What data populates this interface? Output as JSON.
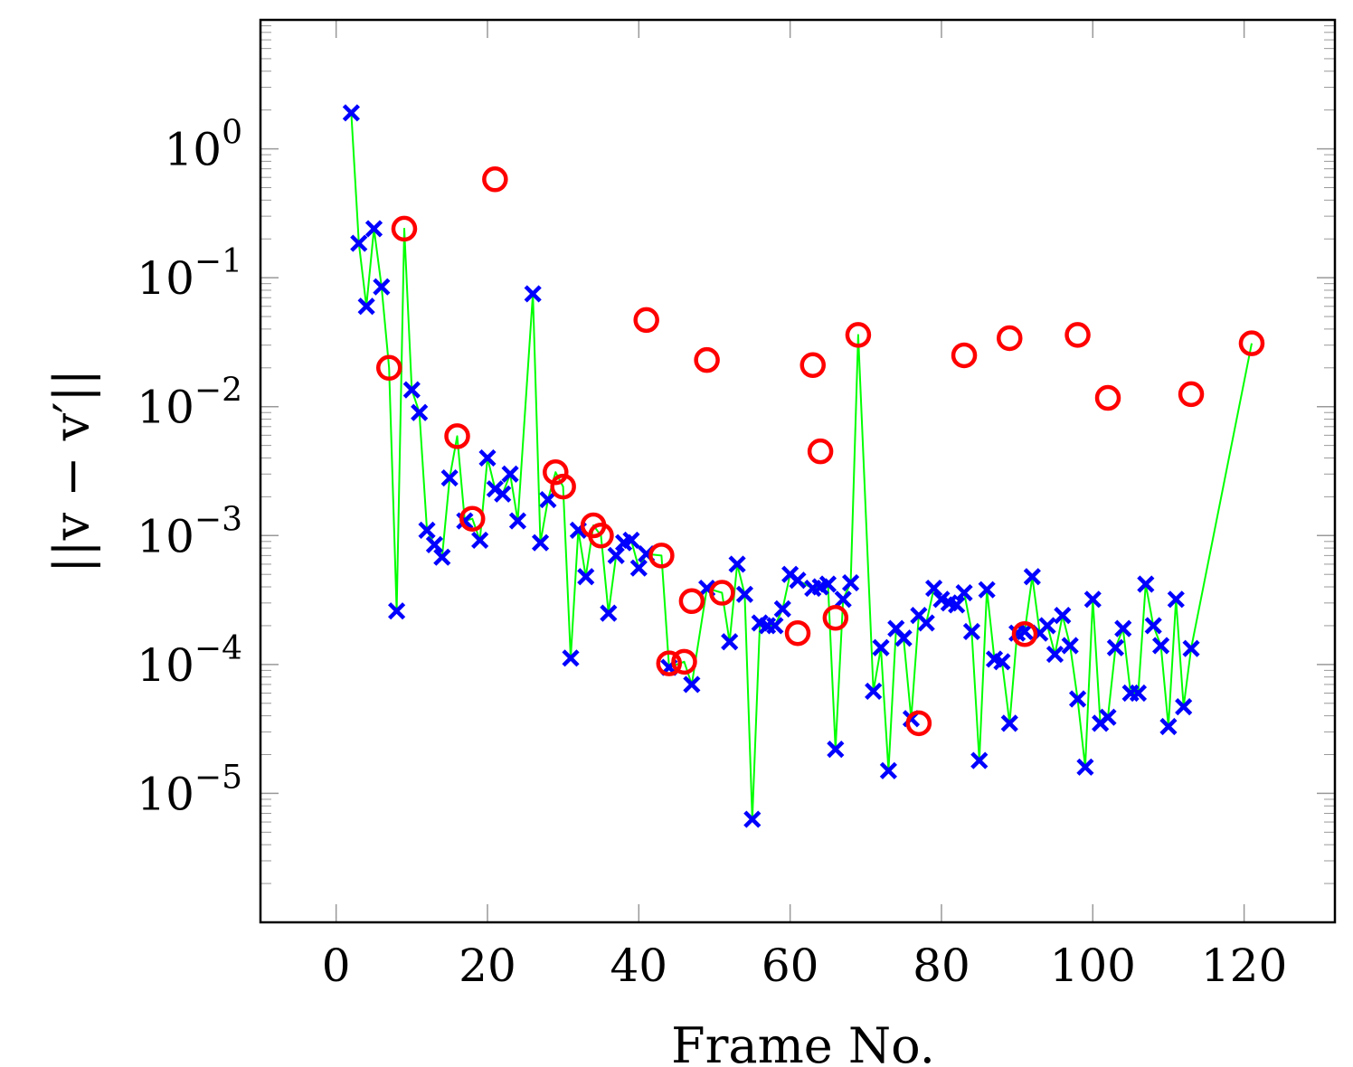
{
  "chart_data": {
    "type": "scatter",
    "title": "",
    "xlabel": "Frame No.",
    "ylabel": "||v − v′||",
    "xlim": [
      -10,
      132
    ],
    "ylim": [
      1e-06,
      10
    ],
    "yscale": "log",
    "grid": false,
    "legend": "none",
    "colors": {
      "line": "#00ff00",
      "cross": "#0000ff",
      "circle": "#ff0000",
      "axis": "#000000",
      "tick": "#999999"
    },
    "x_ticks": [
      0,
      20,
      40,
      60,
      80,
      100,
      120
    ],
    "x_tick_labels": [
      "0",
      "20",
      "40",
      "60",
      "80",
      "100",
      "120"
    ],
    "y_ticks": [
      {
        "value": 1,
        "base": "10",
        "exponent": "0"
      },
      {
        "value": 0.1,
        "base": "10",
        "exponent": "−1"
      },
      {
        "value": 0.01,
        "base": "10",
        "exponent": "−2"
      },
      {
        "value": 0.001,
        "base": "10",
        "exponent": "−3"
      },
      {
        "value": 0.0001,
        "base": "10",
        "exponent": "−4"
      },
      {
        "value": 1e-05,
        "base": "10",
        "exponent": "−5"
      }
    ],
    "series": [
      {
        "name": "cross markers (blue)",
        "marker": "x",
        "points": [
          [
            2,
            1.9
          ],
          [
            3,
            0.185
          ],
          [
            4,
            0.06
          ],
          [
            5,
            0.24
          ],
          [
            6,
            0.085
          ],
          [
            8,
            0.00026
          ],
          [
            10,
            0.0135
          ],
          [
            11,
            0.009
          ],
          [
            12,
            0.0011
          ],
          [
            13,
            0.00085
          ],
          [
            14,
            0.00068
          ],
          [
            15,
            0.0028
          ],
          [
            17,
            0.0013
          ],
          [
            19,
            0.00092
          ],
          [
            20,
            0.004
          ],
          [
            21,
            0.0023
          ],
          [
            22,
            0.0021
          ],
          [
            23,
            0.003
          ],
          [
            24,
            0.0013
          ],
          [
            26,
            0.075
          ],
          [
            27,
            0.00088
          ],
          [
            28,
            0.0019
          ],
          [
            31,
            0.000112
          ],
          [
            32,
            0.0011
          ],
          [
            33,
            0.00048
          ],
          [
            36,
            0.00025
          ],
          [
            37,
            0.0007
          ],
          [
            38,
            0.00088
          ],
          [
            39,
            0.00092
          ],
          [
            40,
            0.00056
          ],
          [
            41,
            0.00072
          ],
          [
            44,
            9.5e-05
          ],
          [
            47,
            7e-05
          ],
          [
            49,
            0.00039
          ],
          [
            52,
            0.00015
          ],
          [
            53,
            0.0006
          ],
          [
            54,
            0.00035
          ],
          [
            55,
            6.3e-06
          ],
          [
            56,
            0.00021
          ],
          [
            57,
            0.0002
          ],
          [
            58,
            0.0002
          ],
          [
            59,
            0.00027
          ],
          [
            60,
            0.0005
          ],
          [
            61,
            0.00045
          ],
          [
            63,
            0.00039
          ],
          [
            64,
            0.0004
          ],
          [
            65,
            0.00042
          ],
          [
            66,
            2.2e-05
          ],
          [
            67,
            0.00032
          ],
          [
            68,
            0.00043
          ],
          [
            71,
            6.2e-05
          ],
          [
            72,
            0.000135
          ],
          [
            73,
            1.5e-05
          ],
          [
            74,
            0.00019
          ],
          [
            75,
            0.00016
          ],
          [
            76,
            3.8e-05
          ],
          [
            77,
            0.00024
          ],
          [
            78,
            0.00021
          ],
          [
            79,
            0.00039
          ],
          [
            80,
            0.00032
          ],
          [
            81,
            0.0003
          ],
          [
            82,
            0.00029
          ],
          [
            83,
            0.00036
          ],
          [
            84,
            0.00018
          ],
          [
            85,
            1.8e-05
          ],
          [
            86,
            0.00038
          ],
          [
            87,
            0.00011
          ],
          [
            88,
            0.000105
          ],
          [
            89,
            3.5e-05
          ],
          [
            90,
            0.000175
          ],
          [
            91,
            0.00018
          ],
          [
            92,
            0.00048
          ],
          [
            93,
            0.000175
          ],
          [
            94,
            0.0002
          ],
          [
            95,
            0.00012
          ],
          [
            96,
            0.00024
          ],
          [
            97,
            0.00014
          ],
          [
            98,
            5.4e-05
          ],
          [
            99,
            1.6e-05
          ],
          [
            100,
            0.00032
          ],
          [
            101,
            3.5e-05
          ],
          [
            102,
            3.9e-05
          ],
          [
            103,
            0.000135
          ],
          [
            104,
            0.00019
          ],
          [
            105,
            6e-05
          ],
          [
            106,
            6e-05
          ],
          [
            107,
            0.00042
          ],
          [
            108,
            0.0002
          ],
          [
            109,
            0.00014
          ],
          [
            110,
            3.3e-05
          ],
          [
            111,
            0.00032
          ],
          [
            112,
            4.7e-05
          ],
          [
            113,
            0.000133
          ]
        ]
      },
      {
        "name": "circle markers (red)",
        "marker": "o",
        "points": [
          [
            7,
            0.02
          ],
          [
            9,
            0.24
          ],
          [
            16,
            0.0059
          ],
          [
            18,
            0.00135
          ],
          [
            21,
            0.58
          ],
          [
            29,
            0.0031
          ],
          [
            30,
            0.0024
          ],
          [
            34,
            0.0012
          ],
          [
            35,
            0.001
          ],
          [
            41,
            0.047
          ],
          [
            43,
            0.0007
          ],
          [
            44,
            0.000102
          ],
          [
            46,
            0.000105
          ],
          [
            47,
            0.00031
          ],
          [
            49,
            0.023
          ],
          [
            51,
            0.00036
          ],
          [
            61,
            0.000175
          ],
          [
            63,
            0.021
          ],
          [
            64,
            0.0045
          ],
          [
            66,
            0.00023
          ],
          [
            69,
            0.036
          ],
          [
            77,
            3.5e-05
          ],
          [
            83,
            0.025
          ],
          [
            89,
            0.034
          ],
          [
            91,
            0.000172
          ],
          [
            98,
            0.036
          ],
          [
            102,
            0.0117
          ],
          [
            113,
            0.0125
          ],
          [
            121,
            0.031
          ]
        ]
      }
    ]
  }
}
